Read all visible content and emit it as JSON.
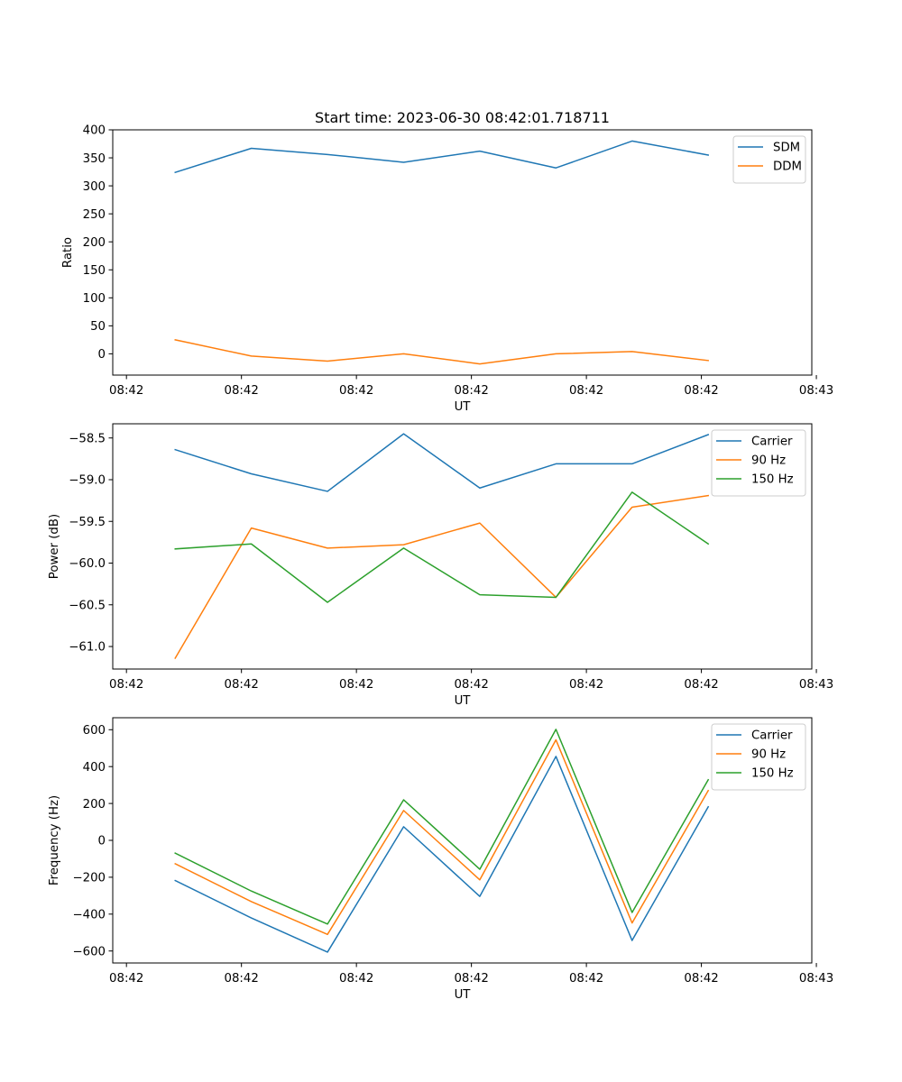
{
  "figure": {
    "title": "Start time: 2023-06-30 08:42:01.718711"
  },
  "chart_data": [
    {
      "type": "line",
      "title": "Start time: 2023-06-30 08:42:01.718711",
      "xlabel": "UT",
      "ylabel": "Ratio",
      "x": [
        1,
        2,
        3,
        4,
        5,
        6,
        7,
        8
      ],
      "xlim": [
        0.18,
        9.36
      ],
      "xticks": [
        0.36,
        1.87,
        3.38,
        4.89,
        6.4,
        7.91,
        9.42
      ],
      "xtick_labels": [
        "08:42",
        "08:42",
        "08:42",
        "08:42",
        "08:42",
        "08:42",
        "08:43"
      ],
      "ylim": [
        -38,
        400
      ],
      "yticks": [
        0,
        50,
        100,
        150,
        200,
        250,
        300,
        350,
        400
      ],
      "ytick_labels": [
        "0",
        "50",
        "100",
        "150",
        "200",
        "250",
        "300",
        "350",
        "400"
      ],
      "legend": "top-right",
      "grid": false,
      "series": [
        {
          "name": "SDM",
          "color": "#1f77b4",
          "values": [
            324,
            367,
            356,
            342,
            362,
            332,
            380,
            355
          ]
        },
        {
          "name": "DDM",
          "color": "#ff7f0e",
          "values": [
            25,
            -4,
            -13,
            0,
            -18,
            0,
            4,
            -12
          ]
        }
      ]
    },
    {
      "type": "line",
      "xlabel": "UT",
      "ylabel": "Power (dB)",
      "x": [
        1,
        2,
        3,
        4,
        5,
        6,
        7,
        8
      ],
      "xlim": [
        0.18,
        9.36
      ],
      "xticks": [
        0.36,
        1.87,
        3.38,
        4.89,
        6.4,
        7.91,
        9.42
      ],
      "xtick_labels": [
        "08:42",
        "08:42",
        "08:42",
        "08:42",
        "08:42",
        "08:42",
        "08:43"
      ],
      "ylim": [
        -61.27,
        -58.33
      ],
      "yticks": [
        -61.0,
        -60.5,
        -60.0,
        -59.5,
        -59.0,
        -58.5
      ],
      "ytick_labels": [
        "−61.0",
        "−60.5",
        "−60.0",
        "−59.5",
        "−59.0",
        "−58.5"
      ],
      "legend": "top-right",
      "grid": false,
      "series": [
        {
          "name": "Carrier",
          "color": "#1f77b4",
          "values": [
            -58.64,
            -58.93,
            -59.14,
            -58.45,
            -59.1,
            -58.81,
            -58.81,
            -58.46
          ]
        },
        {
          "name": "90 Hz",
          "color": "#ff7f0e",
          "values": [
            -61.14,
            -59.58,
            -59.82,
            -59.78,
            -59.52,
            -60.41,
            -59.33,
            -59.19
          ]
        },
        {
          "name": "150 Hz",
          "color": "#2ca02c",
          "values": [
            -59.83,
            -59.77,
            -60.47,
            -59.82,
            -60.38,
            -60.41,
            -59.15,
            -59.77
          ]
        }
      ]
    },
    {
      "type": "line",
      "xlabel": "UT",
      "ylabel": "Frequency (Hz)",
      "x": [
        1,
        2,
        3,
        4,
        5,
        6,
        7,
        8
      ],
      "xlim": [
        0.18,
        9.36
      ],
      "xticks": [
        0.36,
        1.87,
        3.38,
        4.89,
        6.4,
        7.91,
        9.42
      ],
      "xtick_labels": [
        "08:42",
        "08:42",
        "08:42",
        "08:42",
        "08:42",
        "08:42",
        "08:43"
      ],
      "ylim": [
        -665,
        665
      ],
      "yticks": [
        -600,
        -400,
        -200,
        0,
        200,
        400,
        600
      ],
      "ytick_labels": [
        "−600",
        "−400",
        "−200",
        "0",
        "200",
        "400",
        "600"
      ],
      "legend": "top-right",
      "grid": false,
      "series": [
        {
          "name": "Carrier",
          "color": "#1f77b4",
          "values": [
            -218,
            -421,
            -606,
            74,
            -304,
            455,
            -543,
            182
          ]
        },
        {
          "name": "90 Hz",
          "color": "#ff7f0e",
          "values": [
            -127,
            -332,
            -510,
            162,
            -214,
            545,
            -448,
            270
          ]
        },
        {
          "name": "150 Hz",
          "color": "#2ca02c",
          "values": [
            -69,
            -275,
            -454,
            220,
            -157,
            602,
            -391,
            329
          ]
        }
      ]
    }
  ]
}
